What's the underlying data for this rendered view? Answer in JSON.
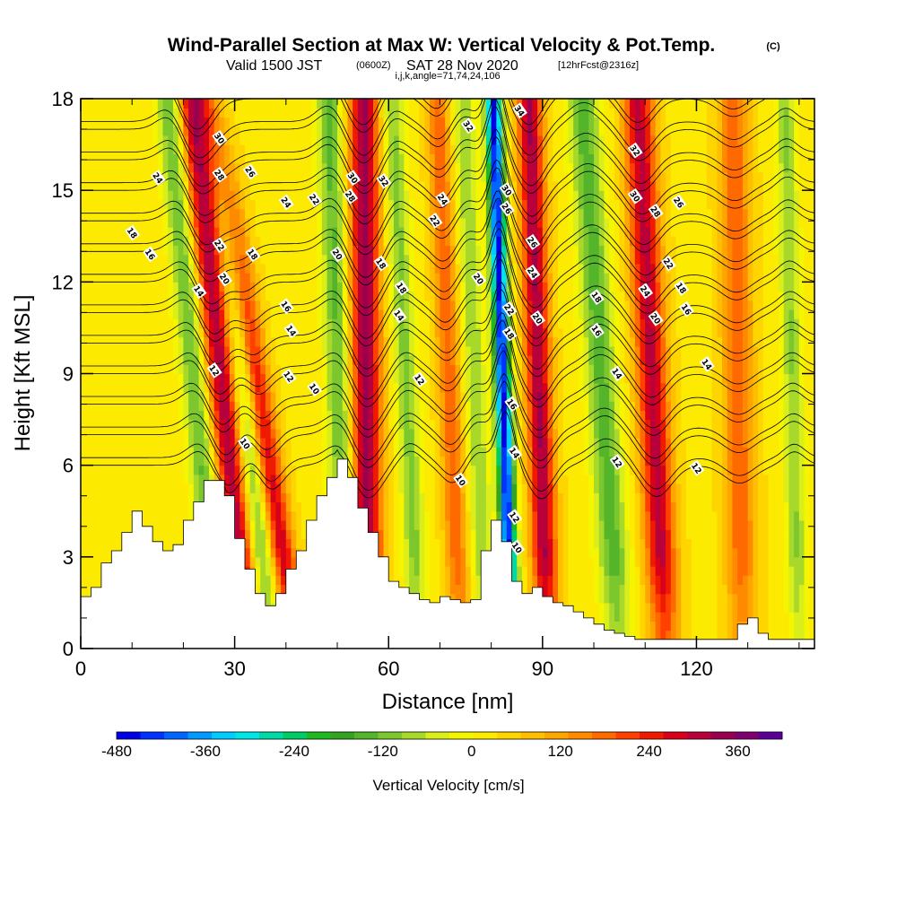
{
  "header": {
    "title": "Wind-Parallel Section at Max W: Vertical Velocity & Pot.Temp.",
    "copyright": "(C)",
    "sub_pre": "Valid 1500 JST",
    "sub_z": "(0600Z)",
    "sub_mid": "SAT 28 Nov 2020",
    "sub_fcst": "[12hrFcst@2316z]",
    "indices": "i,j,k,angle=71,74,24,106"
  },
  "chart_data": {
    "type": "heatmap",
    "title": "Wind-Parallel Section at Max W: Vertical Velocity & Pot.Temp.",
    "xlabel": "Distance [nm]",
    "ylabel": "Height [Kft MSL]",
    "xlim": [
      0,
      143
    ],
    "ylim": [
      0,
      18
    ],
    "x_ticks": [
      "0",
      "30",
      "60",
      "90",
      "120"
    ],
    "y_ticks": [
      "0",
      "3",
      "6",
      "9",
      "12",
      "15",
      "18"
    ],
    "x_tick_values": [
      0,
      30,
      60,
      90,
      120
    ],
    "y_tick_values": [
      0,
      3,
      6,
      9,
      12,
      15,
      18
    ],
    "colorbar": {
      "label": "Vertical Velocity [cm/s]",
      "ticks": [
        "-480",
        "-360",
        "-240",
        "-120",
        "0",
        "120",
        "240",
        "360"
      ],
      "tick_values": [
        -480,
        -360,
        -240,
        -120,
        0,
        120,
        240,
        360
      ],
      "range": [
        -480,
        420
      ],
      "colors": [
        "#0000e6",
        "#0033ff",
        "#0066ff",
        "#0099ff",
        "#00ccff",
        "#00e6e6",
        "#00d9a6",
        "#00cc66",
        "#1fb81f",
        "#33a321",
        "#55b52a",
        "#7cc72e",
        "#a8d92a",
        "#d9ee1a",
        "#f5f500",
        "#fcea00",
        "#ffd500",
        "#ffbf00",
        "#ffa500",
        "#ff8a00",
        "#ff6a00",
        "#ff4000",
        "#f01a00",
        "#d9001a",
        "#b8003a",
        "#990050",
        "#800070",
        "#5a0099"
      ]
    },
    "terrain": {
      "x": [
        0,
        2,
        4,
        6,
        8,
        10,
        12,
        14,
        16,
        18,
        20,
        22,
        24,
        26,
        28,
        30,
        32,
        34,
        36,
        38,
        40,
        42,
        44,
        46,
        48,
        50,
        52,
        54,
        56,
        58,
        60,
        62,
        64,
        66,
        68,
        70,
        72,
        74,
        76,
        78,
        80,
        82,
        84,
        86,
        88,
        90,
        92,
        94,
        96,
        98,
        100,
        102,
        104,
        106,
        108,
        110,
        112,
        114,
        116,
        118,
        120,
        122,
        124,
        126,
        128,
        130,
        132,
        134,
        136,
        138,
        140,
        143
      ],
      "height_kft": [
        1.7,
        2.0,
        2.8,
        3.2,
        3.8,
        4.5,
        4.0,
        3.5,
        3.2,
        3.4,
        4.2,
        4.8,
        5.5,
        5.5,
        5.0,
        3.6,
        2.6,
        1.8,
        1.4,
        1.8,
        2.6,
        3.2,
        4.2,
        5.0,
        5.6,
        6.2,
        5.6,
        4.6,
        3.8,
        3.0,
        2.2,
        2.0,
        1.8,
        1.6,
        1.5,
        1.7,
        1.6,
        1.5,
        1.6,
        3.2,
        4.2,
        3.5,
        2.2,
        1.8,
        2.0,
        1.7,
        1.5,
        1.4,
        1.2,
        1.0,
        0.8,
        0.6,
        0.5,
        0.4,
        0.3,
        0.3,
        0.3,
        0.3,
        0.3,
        0.3,
        0.3,
        0.3,
        0.3,
        0.3,
        0.8,
        1.0,
        0.5,
        0.3,
        0.3,
        0.3,
        0.3,
        0.3
      ]
    },
    "vertical_velocity_bands": [
      {
        "x_base": 33,
        "slope_nm_per_kft": -0.62,
        "width_nm": 3.0,
        "peak_cm_s": 300
      },
      {
        "x_base": 42,
        "slope_nm_per_kft": -0.9,
        "width_nm": 2.6,
        "peak_cm_s": 270
      },
      {
        "x_base": 56,
        "slope_nm_per_kft": -0.05,
        "width_nm": 3.0,
        "peak_cm_s": 310
      },
      {
        "x_base": 74,
        "slope_nm_per_kft": -0.25,
        "width_nm": 2.2,
        "peak_cm_s": 160
      },
      {
        "x_base": 91,
        "slope_nm_per_kft": -0.2,
        "width_nm": 2.5,
        "peak_cm_s": 300
      },
      {
        "x_base": 114,
        "slope_nm_per_kft": -0.3,
        "width_nm": 3.0,
        "peak_cm_s": 280
      },
      {
        "x_base": 129,
        "slope_nm_per_kft": -0.1,
        "width_nm": 3.0,
        "peak_cm_s": 160
      },
      {
        "x_base": 27,
        "slope_nm_per_kft": -0.55,
        "width_nm": 2.5,
        "peak_cm_s": -160
      },
      {
        "x_base": 37,
        "slope_nm_per_kft": -0.6,
        "width_nm": 2.5,
        "peak_cm_s": -190
      },
      {
        "x_base": 52,
        "slope_nm_per_kft": -0.2,
        "width_nm": 2.5,
        "peak_cm_s": -160
      },
      {
        "x_base": 66,
        "slope_nm_per_kft": -0.3,
        "width_nm": 2.2,
        "peak_cm_s": -130
      },
      {
        "x_base": 84,
        "slope_nm_per_kft": -0.2,
        "width_nm": 1.6,
        "peak_cm_s": -480
      },
      {
        "x_base": 105,
        "slope_nm_per_kft": -0.4,
        "width_nm": 3.0,
        "peak_cm_s": -170
      },
      {
        "x_base": 79,
        "slope_nm_per_kft": -0.25,
        "width_nm": 2.0,
        "peak_cm_s": -120
      },
      {
        "x_base": 140,
        "slope_nm_per_kft": -0.15,
        "width_nm": 2.0,
        "peak_cm_s": -120
      }
    ],
    "theta_contours": {
      "levels": [
        10,
        12,
        14,
        16,
        18,
        20,
        22,
        24,
        26,
        28,
        30,
        32,
        34
      ],
      "labels": [
        {
          "x": 32,
          "y": 6.7,
          "text": "10"
        },
        {
          "x": 45.5,
          "y": 8.5,
          "text": "10"
        },
        {
          "x": 74,
          "y": 5.5,
          "text": "10"
        },
        {
          "x": 85,
          "y": 3.3,
          "text": "10"
        },
        {
          "x": 26,
          "y": 9.1,
          "text": "12"
        },
        {
          "x": 40.5,
          "y": 8.9,
          "text": "12"
        },
        {
          "x": 66,
          "y": 8.8,
          "text": "12"
        },
        {
          "x": 84.5,
          "y": 4.3,
          "text": "12"
        },
        {
          "x": 104.5,
          "y": 6.1,
          "text": "12"
        },
        {
          "x": 120,
          "y": 5.9,
          "text": "12"
        },
        {
          "x": 23,
          "y": 11.7,
          "text": "14"
        },
        {
          "x": 41,
          "y": 10.4,
          "text": "14"
        },
        {
          "x": 62,
          "y": 10.9,
          "text": "14"
        },
        {
          "x": 84.5,
          "y": 6.4,
          "text": "14"
        },
        {
          "x": 104.5,
          "y": 9.0,
          "text": "14"
        },
        {
          "x": 122,
          "y": 9.3,
          "text": "14"
        },
        {
          "x": 13.5,
          "y": 12.9,
          "text": "16"
        },
        {
          "x": 40,
          "y": 11.2,
          "text": "16"
        },
        {
          "x": 84,
          "y": 8.0,
          "text": "16"
        },
        {
          "x": 100.5,
          "y": 10.4,
          "text": "16"
        },
        {
          "x": 118,
          "y": 11.1,
          "text": "16"
        },
        {
          "x": 10,
          "y": 13.6,
          "text": "18"
        },
        {
          "x": 33.5,
          "y": 12.9,
          "text": "18"
        },
        {
          "x": 58.5,
          "y": 12.6,
          "text": "18"
        },
        {
          "x": 62.5,
          "y": 11.8,
          "text": "18"
        },
        {
          "x": 83.5,
          "y": 10.3,
          "text": "18"
        },
        {
          "x": 100.5,
          "y": 11.5,
          "text": "18"
        },
        {
          "x": 117,
          "y": 11.8,
          "text": "18"
        },
        {
          "x": 28,
          "y": 12.1,
          "text": "20"
        },
        {
          "x": 50,
          "y": 12.9,
          "text": "20"
        },
        {
          "x": 77.5,
          "y": 12.1,
          "text": "20"
        },
        {
          "x": 89,
          "y": 10.8,
          "text": "20"
        },
        {
          "x": 112,
          "y": 10.8,
          "text": "20"
        },
        {
          "x": 27,
          "y": 13.2,
          "text": "22"
        },
        {
          "x": 45.5,
          "y": 14.7,
          "text": "22"
        },
        {
          "x": 69,
          "y": 14.0,
          "text": "22"
        },
        {
          "x": 83.5,
          "y": 11.1,
          "text": "22"
        },
        {
          "x": 114.5,
          "y": 12.6,
          "text": "22"
        },
        {
          "x": 15,
          "y": 15.4,
          "text": "24"
        },
        {
          "x": 40,
          "y": 14.6,
          "text": "24"
        },
        {
          "x": 70.5,
          "y": 14.7,
          "text": "24"
        },
        {
          "x": 88,
          "y": 12.3,
          "text": "24"
        },
        {
          "x": 110,
          "y": 11.7,
          "text": "24"
        },
        {
          "x": 33,
          "y": 15.6,
          "text": "26"
        },
        {
          "x": 83,
          "y": 14.4,
          "text": "26"
        },
        {
          "x": 88,
          "y": 13.3,
          "text": "26"
        },
        {
          "x": 116.5,
          "y": 14.6,
          "text": "26"
        },
        {
          "x": 27,
          "y": 15.5,
          "text": "28"
        },
        {
          "x": 52.5,
          "y": 14.8,
          "text": "28"
        },
        {
          "x": 112,
          "y": 14.3,
          "text": "28"
        },
        {
          "x": 27,
          "y": 16.7,
          "text": "30"
        },
        {
          "x": 53,
          "y": 15.4,
          "text": "30"
        },
        {
          "x": 83,
          "y": 15.0,
          "text": "30"
        },
        {
          "x": 108,
          "y": 14.8,
          "text": "30"
        },
        {
          "x": 59,
          "y": 15.3,
          "text": "32"
        },
        {
          "x": 75.5,
          "y": 17.1,
          "text": "32"
        },
        {
          "x": 108,
          "y": 16.3,
          "text": "32"
        },
        {
          "x": 85.5,
          "y": 17.6,
          "text": "34"
        }
      ]
    }
  }
}
